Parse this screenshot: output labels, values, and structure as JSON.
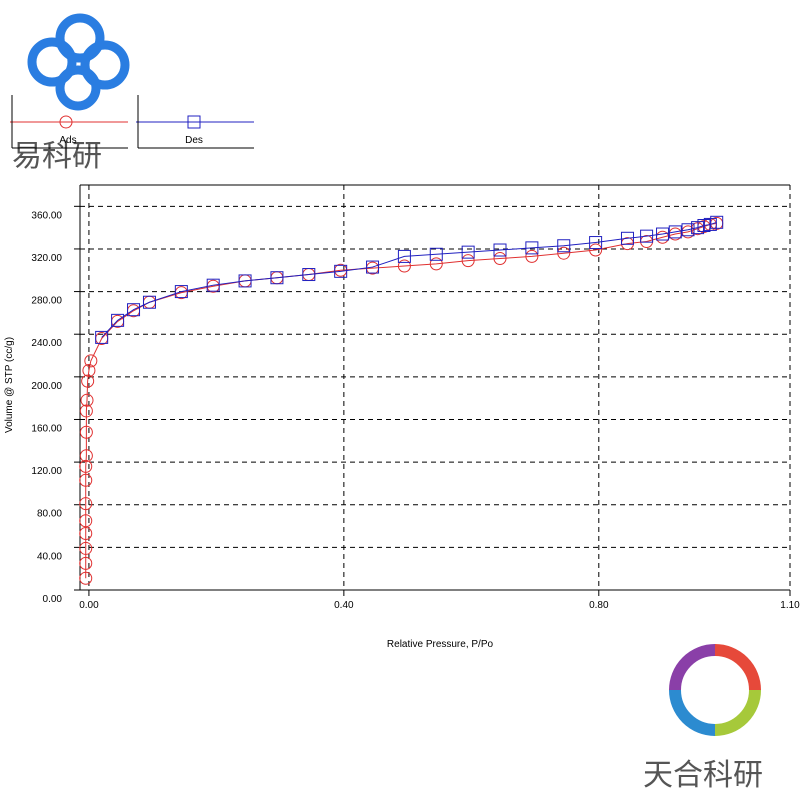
{
  "chart_data": {
    "type": "scatter",
    "x_label": "Relative Pressure, P/Po",
    "y_label": "Volume @ STP (cc/g)",
    "xlim": [
      -0.014,
      1.1
    ],
    "ylim": [
      0,
      380
    ],
    "xticks": [
      {
        "value": 0,
        "label": "0.00"
      },
      {
        "value": 0.4,
        "label": "0.40"
      },
      {
        "value": 0.8,
        "label": "0.80"
      },
      {
        "value": 1.1,
        "label": "1.10"
      }
    ],
    "yticks": [
      {
        "value": 0,
        "label": "0.00"
      },
      {
        "value": 40,
        "label": "40.00"
      },
      {
        "value": 80,
        "label": "80.00"
      },
      {
        "value": 120,
        "label": "120.00"
      },
      {
        "value": 160,
        "label": "160.00"
      },
      {
        "value": 200,
        "label": "200.00"
      },
      {
        "value": 240,
        "label": "240.00"
      },
      {
        "value": 280,
        "label": "280.00"
      },
      {
        "value": 320,
        "label": "320.00"
      },
      {
        "value": 360,
        "label": "360.00"
      }
    ],
    "grid": true,
    "series": [
      {
        "name": "Ads",
        "color": "#e03030",
        "marker": "circle",
        "x": [
          -0.005,
          -0.005,
          -0.005,
          -0.005,
          -0.005,
          -0.005,
          -0.005,
          -0.005,
          -0.004,
          -0.004,
          -0.004,
          -0.003,
          -0.002,
          0,
          0.003,
          0.02,
          0.045,
          0.07,
          0.095,
          0.145,
          0.195,
          0.245,
          0.295,
          0.345,
          0.395,
          0.445,
          0.495,
          0.545,
          0.595,
          0.645,
          0.695,
          0.745,
          0.795,
          0.845,
          0.875,
          0.9,
          0.92,
          0.94,
          0.955,
          0.965,
          0.975,
          0.985
        ],
        "values": [
          11,
          25,
          39,
          53,
          65,
          81,
          103,
          116,
          126,
          148,
          168,
          178,
          196,
          206,
          215,
          236,
          252,
          262,
          270,
          279,
          285,
          290,
          293,
          296,
          300,
          302,
          304,
          306,
          309,
          311,
          313,
          316,
          319,
          325,
          327,
          331,
          334,
          336,
          339,
          341,
          343,
          344
        ]
      },
      {
        "name": "Des",
        "color": "#2020c0",
        "marker": "square",
        "x": [
          0.985,
          0.975,
          0.965,
          0.955,
          0.94,
          0.92,
          0.9,
          0.875,
          0.845,
          0.795,
          0.745,
          0.695,
          0.645,
          0.595,
          0.545,
          0.495,
          0.445,
          0.395,
          0.345,
          0.295,
          0.245,
          0.195,
          0.145,
          0.095,
          0.07,
          0.045,
          0.02
        ],
        "values": [
          345,
          343,
          342,
          340,
          338,
          336,
          334,
          332,
          330,
          326,
          323,
          321,
          319,
          317,
          315,
          313,
          303,
          299,
          296,
          293,
          290,
          286,
          280,
          270,
          263,
          253,
          237
        ]
      }
    ]
  },
  "watermarks": [
    "易科研",
    "天合科研"
  ]
}
